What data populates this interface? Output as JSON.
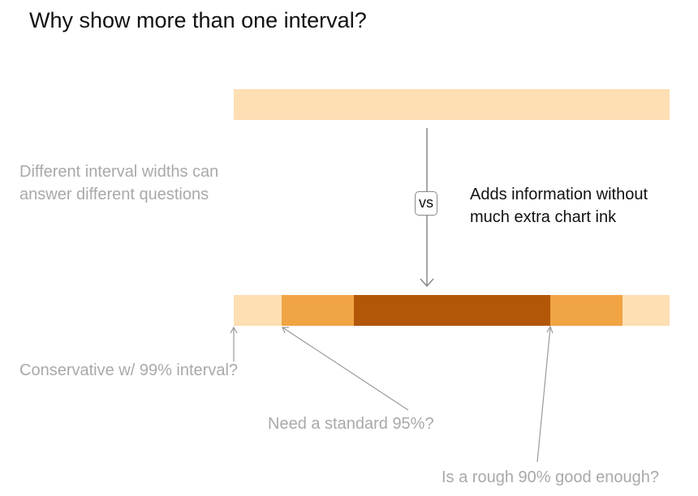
{
  "title": "Why show more than one interval?",
  "left_note": {
    "line1": "Different interval widths can",
    "line2": "answer different questions"
  },
  "vs_label": "vs",
  "right_note": {
    "line1": "Adds information without",
    "line2": "much extra chart ink"
  },
  "questions": {
    "q99": "Conservative w/ 99% interval?",
    "q95": "Need a standard 95%?",
    "q90": "Is a rough 90% good enough?"
  },
  "colors": {
    "interval_99": "#fddfb3",
    "interval_95": "#f1a444",
    "interval_90": "#b25707",
    "arrow_gray": "#8a8a8a",
    "annotation_gray": "#a9a9a9"
  }
}
